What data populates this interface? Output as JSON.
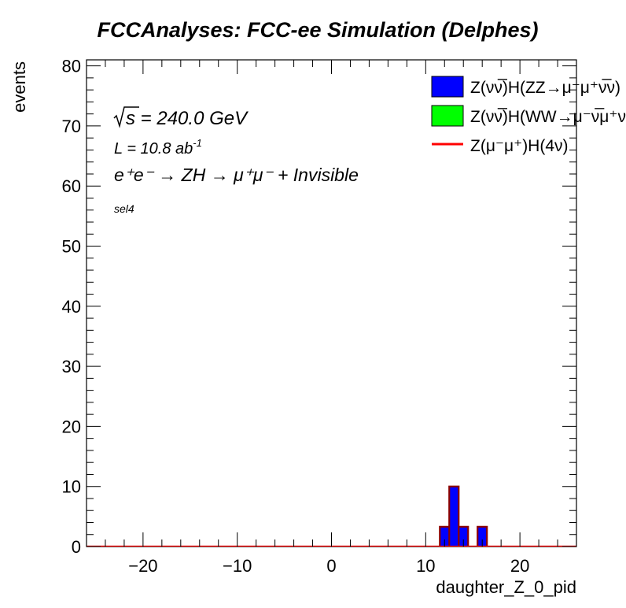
{
  "chart_data": {
    "type": "bar",
    "title": "FCCAnalyses: FCC-ee Simulation (Delphes)",
    "xlabel": "daughter_Z_0_pid",
    "ylabel": "events",
    "xlim": [
      -26,
      26
    ],
    "ylim": [
      0,
      81
    ],
    "x_ticks": [
      -20,
      -10,
      0,
      10,
      20
    ],
    "x_tick_labels": [
      "−20",
      "−10",
      "0",
      "10",
      "20"
    ],
    "y_ticks": [
      0,
      10,
      20,
      30,
      40,
      50,
      60,
      70,
      80
    ],
    "y_tick_labels": [
      "0",
      "10",
      "20",
      "30",
      "40",
      "50",
      "60",
      "70",
      "80"
    ],
    "grid": false,
    "legend_position": "top-right",
    "annotations": {
      "sqrt_s": "s",
      "energy": " = 240.0 GeV",
      "lumi": "L = 10.8 ab",
      "lumi_exp": "-1",
      "process": "e⁺e⁻ → ZH → μ⁺μ⁻ + Invisible",
      "selection": "sel4"
    },
    "bins": [
      {
        "x0": 11.5,
        "x1": 12.5,
        "value": 3.3
      },
      {
        "x0": 12.5,
        "x1": 13.5,
        "value": 10.0
      },
      {
        "x0": 13.5,
        "x1": 14.5,
        "value": 3.3
      },
      {
        "x0": 14.5,
        "x1": 15.5,
        "value": 0.0
      },
      {
        "x0": 15.5,
        "x1": 16.5,
        "value": 3.3
      }
    ],
    "series": [
      {
        "name": "Z(νν̅)H(ZZ→μ⁻μ⁺ν̅ν)",
        "color": "#0000ff",
        "kind": "filled",
        "values": [
          3.3,
          10.0,
          3.3,
          0.0,
          3.3
        ]
      },
      {
        "name": "Z(νν̅)H(WW→μ⁻ν̅μ⁺ν)",
        "color": "#00ff00",
        "kind": "filled",
        "values": [
          0,
          0,
          0,
          0,
          0
        ]
      },
      {
        "name": "Z(μ⁻μ⁺)H(4ν)",
        "color": "#ff0000",
        "kind": "line",
        "values": [
          0,
          0,
          0,
          0,
          0
        ]
      }
    ]
  }
}
